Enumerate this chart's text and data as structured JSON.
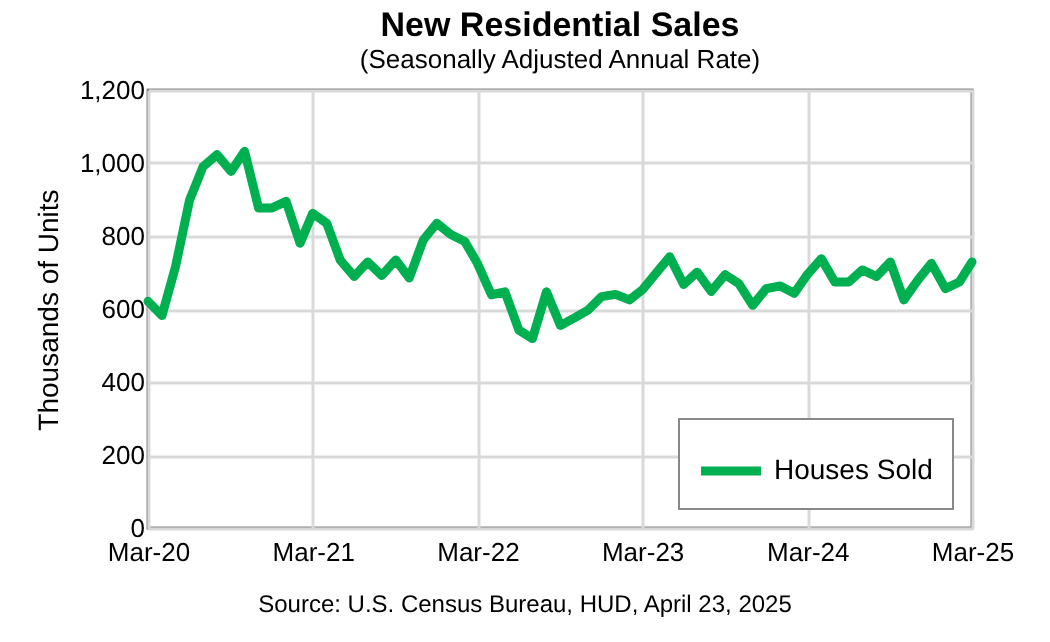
{
  "chart_data": {
    "type": "line",
    "title": "New Residential Sales",
    "subtitle": "(Seasonally Adjusted Annual Rate)",
    "ylabel": "Thousands of Units",
    "annotations": [
      "Source:  U.S. Census Bureau, HUD, April 23, 2025"
    ],
    "x": [
      "2020-03",
      "2020-04",
      "2020-05",
      "2020-06",
      "2020-07",
      "2020-08",
      "2020-09",
      "2020-10",
      "2020-11",
      "2020-12",
      "2021-01",
      "2021-02",
      "2021-03",
      "2021-04",
      "2021-05",
      "2021-06",
      "2021-07",
      "2021-08",
      "2021-09",
      "2021-10",
      "2021-11",
      "2021-12",
      "2022-01",
      "2022-02",
      "2022-03",
      "2022-04",
      "2022-05",
      "2022-06",
      "2022-07",
      "2022-08",
      "2022-09",
      "2022-10",
      "2022-11",
      "2022-12",
      "2023-01",
      "2023-02",
      "2023-03",
      "2023-04",
      "2023-05",
      "2023-06",
      "2023-07",
      "2023-08",
      "2023-09",
      "2023-10",
      "2023-11",
      "2023-12",
      "2024-01",
      "2024-02",
      "2024-03",
      "2024-04",
      "2024-05",
      "2024-06",
      "2024-07",
      "2024-08",
      "2024-09",
      "2024-10",
      "2024-11",
      "2024-12",
      "2025-01",
      "2025-02",
      "2025-03"
    ],
    "series": [
      {
        "name": "Houses Sold",
        "color": "#00b050",
        "values": [
          621,
          582,
          716,
          898,
          990,
          1023,
          977,
          1032,
          877,
          877,
          895,
          780,
          862,
          835,
          734,
          689,
          729,
          692,
          734,
          685,
          789,
          835,
          804,
          785,
          725,
          639,
          647,
          542,
          519,
          647,
          555,
          575,
          597,
          634,
          640,
          625,
          652,
          698,
          743,
          667,
          701,
          648,
          694,
          670,
          610,
          656,
          663,
          643,
          694,
          738,
          674,
          674,
          707,
          689,
          729,
          625,
          679,
          725,
          656,
          674,
          729
        ]
      }
    ],
    "xlim": [
      "2020-03",
      "2025-03"
    ],
    "xticks": [
      {
        "value": "2020-03",
        "label": "Mar-20"
      },
      {
        "value": "2021-03",
        "label": "Mar-21"
      },
      {
        "value": "2022-03",
        "label": "Mar-22"
      },
      {
        "value": "2023-03",
        "label": "Mar-23"
      },
      {
        "value": "2024-03",
        "label": "Mar-24"
      },
      {
        "value": "2025-03",
        "label": "Mar-25"
      }
    ],
    "ylim": [
      0,
      1200
    ],
    "yticks": [
      {
        "value": 0,
        "label": "0"
      },
      {
        "value": 200,
        "label": "200"
      },
      {
        "value": 400,
        "label": "400"
      },
      {
        "value": 600,
        "label": "600"
      },
      {
        "value": 800,
        "label": "800"
      },
      {
        "value": 1000,
        "label": "1,000"
      },
      {
        "value": 1200,
        "label": "1,200"
      }
    ],
    "grid": true,
    "legend": "bottom right",
    "marker": "none",
    "line_style": "solid"
  }
}
